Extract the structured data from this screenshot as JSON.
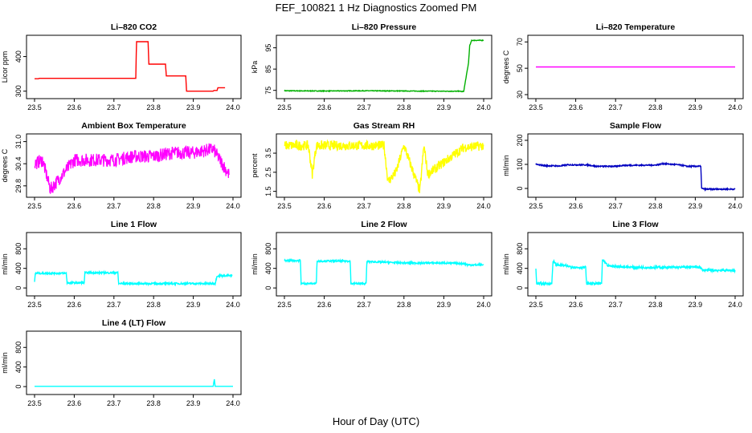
{
  "page": {
    "title": "FEF_100821  1 Hz Diagnostics Zoomed PM",
    "xlabel": "Hour of Day (UTC)"
  },
  "chart_data": [
    {
      "type": "line",
      "title": "Li–820 CO2",
      "ylabel": "Licor ppm",
      "color": "#ff0000",
      "xlim": [
        23.5,
        24.0
      ],
      "ylim": [
        290,
        450
      ],
      "xticks": [
        "23.5",
        "23.6",
        "23.7",
        "23.8",
        "23.9",
        "24.0"
      ],
      "yticks": [
        "300",
        "400"
      ],
      "grid": false,
      "x": [
        23.5,
        23.51,
        23.512,
        23.755,
        23.757,
        23.786,
        23.788,
        23.83,
        23.832,
        23.881,
        23.883,
        23.95,
        23.952,
        23.96,
        23.962,
        23.98
      ],
      "y": [
        336,
        336,
        337,
        337,
        443,
        443,
        378,
        378,
        344,
        344,
        300,
        300,
        302,
        302,
        310,
        310
      ]
    },
    {
      "type": "line",
      "title": "Li–820 Pressure",
      "ylabel": "kPa",
      "color": "#00b000",
      "xlim": [
        23.5,
        24.0
      ],
      "ylim": [
        73,
        99
      ],
      "xticks": [
        "23.5",
        "23.6",
        "23.7",
        "23.8",
        "23.9",
        "24.0"
      ],
      "yticks": [
        "75",
        "85",
        "95"
      ],
      "grid": false,
      "x": [
        23.5,
        23.6,
        23.7,
        23.8,
        23.9,
        23.94,
        23.948,
        23.95,
        23.962,
        23.965,
        23.97,
        24.0
      ],
      "y": [
        74.8,
        74.7,
        74.8,
        74.7,
        74.6,
        74.6,
        74.4,
        74.6,
        88,
        96,
        98.5,
        98.5
      ]
    },
    {
      "type": "line",
      "title": "Li–820 Temperature",
      "ylabel": "degrees C",
      "color": "#ff00ff",
      "xlim": [
        23.5,
        24.0
      ],
      "ylim": [
        30,
        72
      ],
      "xticks": [
        "23.5",
        "23.6",
        "23.7",
        "23.8",
        "23.9",
        "24.0"
      ],
      "yticks": [
        "30",
        "50",
        "70"
      ],
      "grid": false,
      "x": [
        23.5,
        24.0
      ],
      "y": [
        51,
        51
      ]
    },
    {
      "type": "line",
      "title": "Ambient Box Temperature",
      "ylabel": "degrees C",
      "color": "#ff00ff",
      "xlim": [
        23.5,
        24.0
      ],
      "ylim": [
        29.6,
        31.1
      ],
      "xticks": [
        "23.5",
        "23.6",
        "23.7",
        "23.8",
        "23.9",
        "24.0"
      ],
      "yticks": [
        "29.8",
        "30.4",
        "31.0"
      ],
      "grid": false,
      "x": [
        23.5,
        23.52,
        23.54,
        23.6,
        23.65,
        23.7,
        23.75,
        23.8,
        23.85,
        23.9,
        23.95,
        23.99
      ],
      "y": [
        30.4,
        30.5,
        29.7,
        30.5,
        30.5,
        30.5,
        30.6,
        30.6,
        30.7,
        30.7,
        30.8,
        30.1
      ]
    },
    {
      "type": "line",
      "title": "Gas Stream RH",
      "ylabel": "percent",
      "color": "#ffff00",
      "xlim": [
        23.5,
        24.0
      ],
      "ylim": [
        1.4,
        4.3
      ],
      "xticks": [
        "23.5",
        "23.6",
        "23.7",
        "23.8",
        "23.9",
        "24.0"
      ],
      "yticks": [
        "1.5",
        "2.5",
        "3.5"
      ],
      "grid": false,
      "x": [
        23.5,
        23.56,
        23.57,
        23.58,
        23.75,
        23.76,
        23.78,
        23.8,
        23.84,
        23.85,
        23.86,
        23.95,
        24.0
      ],
      "y": [
        3.9,
        3.9,
        2.4,
        3.9,
        3.9,
        2.0,
        2.5,
        3.9,
        1.5,
        3.9,
        2.4,
        3.8,
        3.9
      ]
    },
    {
      "type": "line",
      "title": "Sample Flow",
      "ylabel": "ml/min",
      "color": "#0000c0",
      "xlim": [
        23.5,
        24.0
      ],
      "ylim": [
        -20,
        210
      ],
      "xticks": [
        "23.5",
        "23.6",
        "23.7",
        "23.8",
        "23.9",
        "24.0"
      ],
      "yticks": [
        "0",
        "100",
        "200"
      ],
      "grid": false,
      "x": [
        23.5,
        23.52,
        23.56,
        23.58,
        23.63,
        23.65,
        23.7,
        23.72,
        23.8,
        23.82,
        23.86,
        23.88,
        23.914,
        23.916,
        23.925,
        24.0
      ],
      "y": [
        100,
        95,
        93,
        98,
        98,
        92,
        92,
        96,
        97,
        103,
        98,
        92,
        92,
        0,
        -3,
        -3
      ]
    },
    {
      "type": "line",
      "title": "Line 1 Flow",
      "ylabel": "ml/min",
      "color": "#00ffff",
      "xlim": [
        23.5,
        24.0
      ],
      "ylim": [
        -80,
        1050
      ],
      "xticks": [
        "23.5",
        "23.6",
        "23.7",
        "23.8",
        "23.9",
        "24.0"
      ],
      "yticks": [
        "0",
        "400",
        "800"
      ],
      "grid": false,
      "x": [
        23.5,
        23.502,
        23.58,
        23.582,
        23.625,
        23.627,
        23.71,
        23.712,
        23.955,
        23.96,
        23.998
      ],
      "y": [
        120,
        300,
        300,
        105,
        105,
        310,
        310,
        90,
        90,
        250,
        250
      ]
    },
    {
      "type": "line",
      "title": "Line 2 Flow",
      "ylabel": "ml/min",
      "color": "#00ffff",
      "xlim": [
        23.5,
        24.0
      ],
      "ylim": [
        -80,
        1050
      ],
      "xticks": [
        "23.5",
        "23.6",
        "23.7",
        "23.8",
        "23.9",
        "24.0"
      ],
      "yticks": [
        "0",
        "400",
        "800"
      ],
      "grid": false,
      "x": [
        23.5,
        23.54,
        23.542,
        23.58,
        23.582,
        23.665,
        23.667,
        23.705,
        23.707,
        23.8,
        23.9,
        23.95,
        23.96,
        24.0
      ],
      "y": [
        560,
        560,
        90,
        90,
        550,
        550,
        90,
        90,
        540,
        510,
        510,
        500,
        470,
        470
      ]
    },
    {
      "type": "line",
      "title": "Line 3 Flow",
      "ylabel": "ml/min",
      "color": "#00ffff",
      "xlim": [
        23.5,
        24.0
      ],
      "ylim": [
        -80,
        1050
      ],
      "xticks": [
        "23.5",
        "23.6",
        "23.7",
        "23.8",
        "23.9",
        "24.0"
      ],
      "yticks": [
        "0",
        "400",
        "800"
      ],
      "grid": false,
      "x": [
        23.5,
        23.502,
        23.505,
        23.54,
        23.543,
        23.55,
        23.6,
        23.625,
        23.627,
        23.665,
        23.667,
        23.68,
        23.75,
        23.85,
        23.91,
        23.92,
        24.0
      ],
      "y": [
        400,
        90,
        90,
        90,
        560,
        480,
        420,
        420,
        90,
        90,
        580,
        450,
        420,
        420,
        430,
        360,
        360
      ]
    },
    {
      "type": "line",
      "title": "Line 4 (LT) Flow",
      "ylabel": "ml/min",
      "color": "#00ffff",
      "xlim": [
        23.5,
        24.0
      ],
      "ylim": [
        -80,
        1050
      ],
      "xticks": [
        "23.5",
        "23.6",
        "23.7",
        "23.8",
        "23.9",
        "24.0"
      ],
      "yticks": [
        "0",
        "400",
        "800"
      ],
      "grid": false,
      "x": [
        23.5,
        23.95,
        23.953,
        23.955,
        23.958,
        24.0
      ],
      "y": [
        5,
        5,
        150,
        5,
        5,
        5
      ]
    }
  ]
}
